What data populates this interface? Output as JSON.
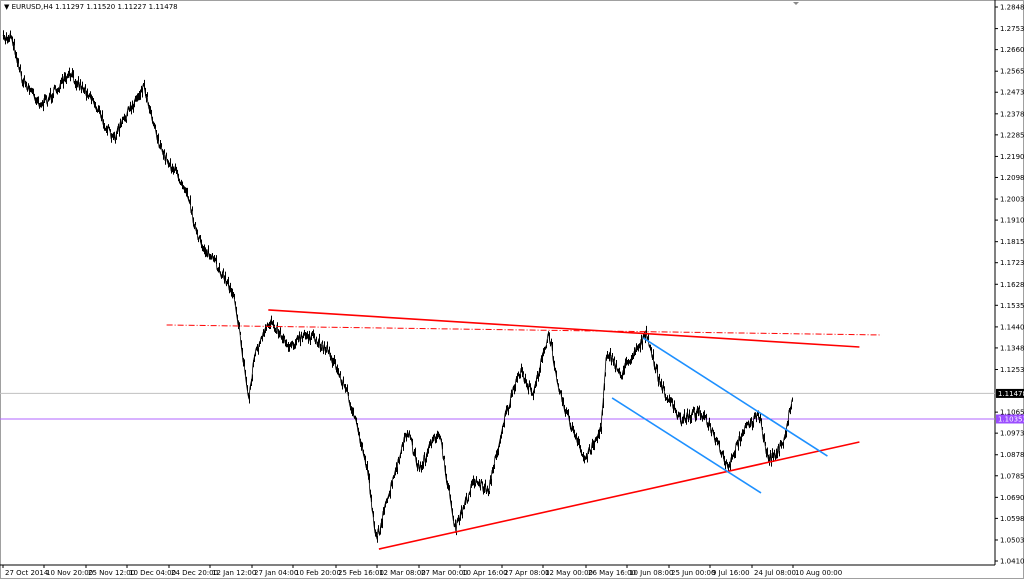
{
  "chart_data": {
    "type": "line",
    "title": "EURUSD,H4  1.11297 1.11520 1.11227 1.11478",
    "symbol": "EURUSD,H4",
    "ohlc": {
      "open": "1.11297",
      "high": "1.11520",
      "low": "1.11227",
      "close": "1.11478"
    },
    "ylim": [
      1.04105,
      1.2848
    ],
    "grid": false,
    "colors": {
      "price": "#000000",
      "trendline": "#ff0000",
      "channel": "#1e90ff",
      "bid_line": "#c0c0c0",
      "level_line": "#b266ff",
      "bid_label_bg": "#000000",
      "level_label_bg": "#9b4dff"
    },
    "y_ticks": [
      "1.28480",
      "1.27530",
      "1.26605",
      "1.25655",
      "1.24730",
      "1.23780",
      "1.22855",
      "1.21905",
      "1.20980",
      "1.20030",
      "1.19105",
      "1.18155",
      "1.17230",
      "1.16280",
      "1.15355",
      "1.14405",
      "1.13480",
      "1.12530",
      "1.10655",
      "1.09730",
      "1.08780",
      "1.07855",
      "1.06905",
      "1.05980",
      "1.05030",
      "1.04105"
    ],
    "x_ticks": [
      {
        "label": "27 Oct 2014",
        "t": "2014-10-27T00:00"
      },
      {
        "label": "10 Nov 20:00",
        "t": "2014-11-10T20:00"
      },
      {
        "label": "25 Nov 12:00",
        "t": "2014-11-25T12:00"
      },
      {
        "label": "10 Dec 04:00",
        "t": "2014-12-10T04:00"
      },
      {
        "label": "24 Dec 20:00",
        "t": "2014-12-24T20:00"
      },
      {
        "label": "12 Jan 12:00",
        "t": "2015-01-12T12:00"
      },
      {
        "label": "27 Jan 04:00",
        "t": "2015-01-27T04:00"
      },
      {
        "label": "10 Feb 20:00",
        "t": "2015-02-10T20:00"
      },
      {
        "label": "25 Feb 16:00",
        "t": "2015-02-25T16:00"
      },
      {
        "label": "12 Mar 08:00",
        "t": "2015-03-12T08:00"
      },
      {
        "label": "27 Mar 00:00",
        "t": "2015-03-27T00:00"
      },
      {
        "label": "10 Apr 16:00",
        "t": "2015-04-10T16:00"
      },
      {
        "label": "27 Apr 08:00",
        "t": "2015-04-27T08:00"
      },
      {
        "label": "12 May 00:00",
        "t": "2015-05-12T00:00"
      },
      {
        "label": "26 May 16:00",
        "t": "2015-05-26T16:00"
      },
      {
        "label": "10 Jun 08:00",
        "t": "2015-06-10T08:00"
      },
      {
        "label": "25 Jun 00:00",
        "t": "2015-06-25T00:00"
      },
      {
        "label": "9 Jul 16:00",
        "t": "2015-07-09T16:00"
      },
      {
        "label": "24 Jul 08:00",
        "t": "2015-07-24T08:00"
      },
      {
        "label": "10 Aug 00:00",
        "t": "2015-08-10T00:00"
      }
    ],
    "series": [
      {
        "points": [
          [
            "2014-10-27",
            1.2703
          ],
          [
            "2014-10-30",
            1.2725
          ],
          [
            "2014-11-03",
            1.2527
          ],
          [
            "2014-11-10",
            1.2417
          ],
          [
            "2014-11-20",
            1.2549
          ],
          [
            "2014-11-27",
            1.2461
          ],
          [
            "2014-12-05",
            1.2263
          ],
          [
            "2014-12-16",
            1.2505
          ],
          [
            "2014-12-22",
            1.2219
          ],
          [
            "2015-01-02",
            1.2043
          ],
          [
            "2015-01-07",
            1.1823
          ],
          [
            "2015-01-16",
            1.1691
          ],
          [
            "2015-01-21",
            1.1581
          ],
          [
            "2015-01-26",
            1.1119
          ],
          [
            "2015-01-28",
            1.1317
          ],
          [
            "2015-02-03",
            1.1471
          ],
          [
            "2015-02-09",
            1.1361
          ],
          [
            "2015-02-16",
            1.1405
          ],
          [
            "2015-02-23",
            1.1339
          ],
          [
            "2015-03-02",
            1.1141
          ],
          [
            "2015-03-09",
            1.0811
          ],
          [
            "2015-03-12",
            1.0503
          ],
          [
            "2015-03-16",
            1.0679
          ],
          [
            "2015-03-23",
            1.0987
          ],
          [
            "2015-03-27",
            1.0811
          ],
          [
            "2015-04-03",
            1.0987
          ],
          [
            "2015-04-09",
            1.0547
          ],
          [
            "2015-04-16",
            1.0767
          ],
          [
            "2015-04-22",
            1.0723
          ],
          [
            "2015-04-28",
            1.1031
          ],
          [
            "2015-05-04",
            1.1251
          ],
          [
            "2015-05-08",
            1.1141
          ],
          [
            "2015-05-14",
            1.1405
          ],
          [
            "2015-05-18",
            1.1141
          ],
          [
            "2015-05-22",
            1.0987
          ],
          [
            "2015-05-26",
            1.0855
          ],
          [
            "2015-06-01",
            1.0987
          ],
          [
            "2015-06-03",
            1.1339
          ],
          [
            "2015-06-08",
            1.1229
          ],
          [
            "2015-06-12",
            1.1317
          ],
          [
            "2015-06-17",
            1.1405
          ],
          [
            "2015-06-22",
            1.1185
          ],
          [
            "2015-06-29",
            1.1031
          ],
          [
            "2015-07-06",
            1.1075
          ],
          [
            "2015-07-10",
            1.0987
          ],
          [
            "2015-07-16",
            1.0811
          ],
          [
            "2015-07-21",
            1.0987
          ],
          [
            "2015-07-27",
            1.1053
          ],
          [
            "2015-07-31",
            1.0855
          ],
          [
            "2015-08-06",
            1.0921
          ],
          [
            "2015-08-10",
            1.1148
          ]
        ]
      }
    ],
    "trendlines": [
      {
        "kind": "resistance",
        "color": "#ff0000",
        "dashed": false,
        "from": [
          "2015-02-02",
          1.1515
        ],
        "to": [
          "2015-09-06",
          1.1352
        ]
      },
      {
        "kind": "dash-dot",
        "color": "#ff0000",
        "dashed": true,
        "from": [
          "2014-12-24",
          1.1449
        ],
        "to": [
          "2015-09-15",
          1.1405
        ]
      },
      {
        "kind": "support",
        "color": "#ff0000",
        "dashed": false,
        "from": [
          "2015-03-13",
          1.0463
        ],
        "to": [
          "2015-09-06",
          1.0934
        ]
      },
      {
        "kind": "channel-top",
        "color": "#1e90ff",
        "dashed": false,
        "from": [
          "2015-06-16",
          1.1392
        ],
        "to": [
          "2015-08-24",
          1.0872
        ]
      },
      {
        "kind": "channel-bottom",
        "color": "#1e90ff",
        "dashed": false,
        "from": [
          "2015-06-05",
          1.1128
        ],
        "to": [
          "2015-07-28",
          1.071
        ]
      }
    ],
    "hlines": [
      {
        "label": "1.11478",
        "price": 1.11478,
        "color": "#c0c0c0",
        "label_bg": "#000000"
      },
      {
        "label": "1.10353",
        "price": 1.10353,
        "color": "#b266ff",
        "label_bg": "#9b4dff"
      }
    ]
  }
}
